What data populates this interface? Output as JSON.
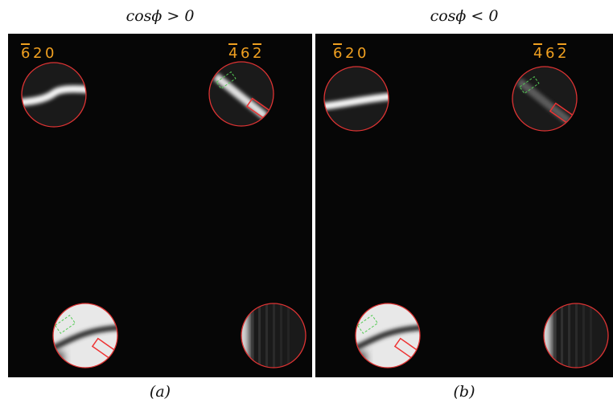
{
  "panels": [
    {
      "title": "cos𝜙 > 0",
      "caption": "(a)",
      "labels": [
        {
          "digits": [
            "6",
            "2",
            "0"
          ],
          "bars": [
            true,
            false,
            false
          ]
        },
        {
          "digits": [
            "4",
            "6",
            "2"
          ],
          "bars": [
            true,
            false,
            true
          ]
        }
      ]
    },
    {
      "title": "cos𝜙 < 0",
      "caption": "(b)",
      "labels": [
        {
          "digits": [
            "6",
            "2",
            "0"
          ],
          "bars": [
            true,
            false,
            false
          ]
        },
        {
          "digits": [
            "4",
            "6",
            "2"
          ],
          "bars": [
            true,
            false,
            true
          ]
        }
      ]
    }
  ]
}
